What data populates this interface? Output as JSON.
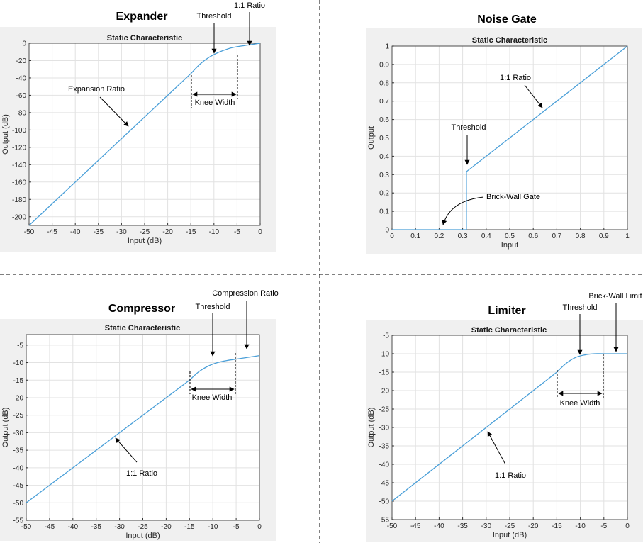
{
  "panels": [
    {
      "id": "expander",
      "panel_title": "Expander",
      "plot_title": "Static Characteristic",
      "annotations": [
        "Threshold",
        "1:1 Ratio",
        "Expansion Ratio",
        "Knee Width"
      ]
    },
    {
      "id": "noise-gate",
      "panel_title": "Noise Gate",
      "plot_title": "Static Characteristic",
      "annotations": [
        "1:1 Ratio",
        "Threshold",
        "Brick-Wall Gate"
      ]
    },
    {
      "id": "compressor",
      "panel_title": "Compressor",
      "plot_title": "Static Characteristic",
      "annotations": [
        "Threshold",
        "Compression Ratio",
        "Knee Width",
        "1:1 Ratio"
      ]
    },
    {
      "id": "limiter",
      "panel_title": "Limiter",
      "plot_title": "Static Characteristic",
      "annotations": [
        "Threshold",
        "Brick-Wall Limit",
        "Knee Width",
        "1:1 Ratio"
      ]
    }
  ],
  "chart_data": [
    {
      "type": "line",
      "title": "Static Characteristic",
      "xlabel": "Input (dB)",
      "ylabel": "Output (dB)",
      "xlim": [
        -50,
        0
      ],
      "ylim": [
        -210,
        0
      ],
      "xticks": [
        -50,
        -45,
        -40,
        -35,
        -30,
        -25,
        -20,
        -15,
        -10,
        -5,
        0
      ],
      "yticks": [
        0,
        -20,
        -40,
        -60,
        -80,
        -100,
        -120,
        -140,
        -160,
        -180,
        -200
      ],
      "grid": true,
      "series": [
        {
          "x": [
            -50,
            -15,
            -13,
            -11,
            -9,
            -7,
            -5,
            0
          ],
          "y": [
            -210,
            -35,
            -24,
            -16,
            -10.5,
            -6.5,
            -4,
            0
          ]
        }
      ],
      "knee": [
        -15,
        -5
      ]
    },
    {
      "type": "line",
      "title": "Static Characteristic",
      "xlabel": "Input",
      "ylabel": "Output",
      "xlim": [
        0,
        1
      ],
      "ylim": [
        0,
        1
      ],
      "xticks": [
        "0",
        "0.1",
        "0.2",
        "0.3",
        "0.4",
        "0.5",
        "0.6",
        "0.7",
        "0.8",
        "0.9",
        "1"
      ],
      "yticks": [
        "0",
        "0.1",
        "0.2",
        "0.3",
        "0.4",
        "0.5",
        "0.6",
        "0.7",
        "0.8",
        "0.9",
        "1"
      ],
      "grid": true,
      "series": [
        {
          "x": [
            0,
            0.316,
            0.316,
            1
          ],
          "y": [
            0,
            0,
            0.316,
            1
          ]
        }
      ]
    },
    {
      "type": "line",
      "title": "Static Characteristic",
      "xlabel": "Input (dB)",
      "ylabel": "Output (dB)",
      "xlim": [
        -50,
        0
      ],
      "ylim": [
        -55,
        -2
      ],
      "xticks": [
        -50,
        -45,
        -40,
        -35,
        -30,
        -25,
        -20,
        -15,
        -10,
        -5,
        0
      ],
      "yticks": [
        -5,
        -10,
        -15,
        -20,
        -25,
        -30,
        -35,
        -40,
        -45,
        -50,
        -55
      ],
      "grid": true,
      "series": [
        {
          "x": [
            -50,
            -15,
            -13,
            -11,
            -9,
            -7,
            -5,
            0
          ],
          "y": [
            -50,
            -15,
            -12.6,
            -11,
            -10,
            -9.4,
            -9,
            -8
          ]
        }
      ],
      "knee": [
        -15,
        -5
      ]
    },
    {
      "type": "line",
      "title": "Static Characteristic",
      "xlabel": "Input (dB)",
      "ylabel": "Output (dB)",
      "xlim": [
        -50,
        0
      ],
      "ylim": [
        -55,
        -5
      ],
      "xticks": [
        -50,
        -45,
        -40,
        -35,
        -30,
        -25,
        -20,
        -15,
        -10,
        -5,
        0
      ],
      "yticks": [
        -5,
        -10,
        -15,
        -20,
        -25,
        -30,
        -35,
        -40,
        -45,
        -50,
        -55
      ],
      "grid": true,
      "series": [
        {
          "x": [
            -50,
            -15,
            -13,
            -11,
            -9,
            -7,
            -5,
            0
          ],
          "y": [
            -50,
            -15,
            -12.6,
            -11,
            -10.3,
            -10,
            -10,
            -10
          ]
        }
      ],
      "knee": [
        -15,
        -5
      ]
    }
  ]
}
